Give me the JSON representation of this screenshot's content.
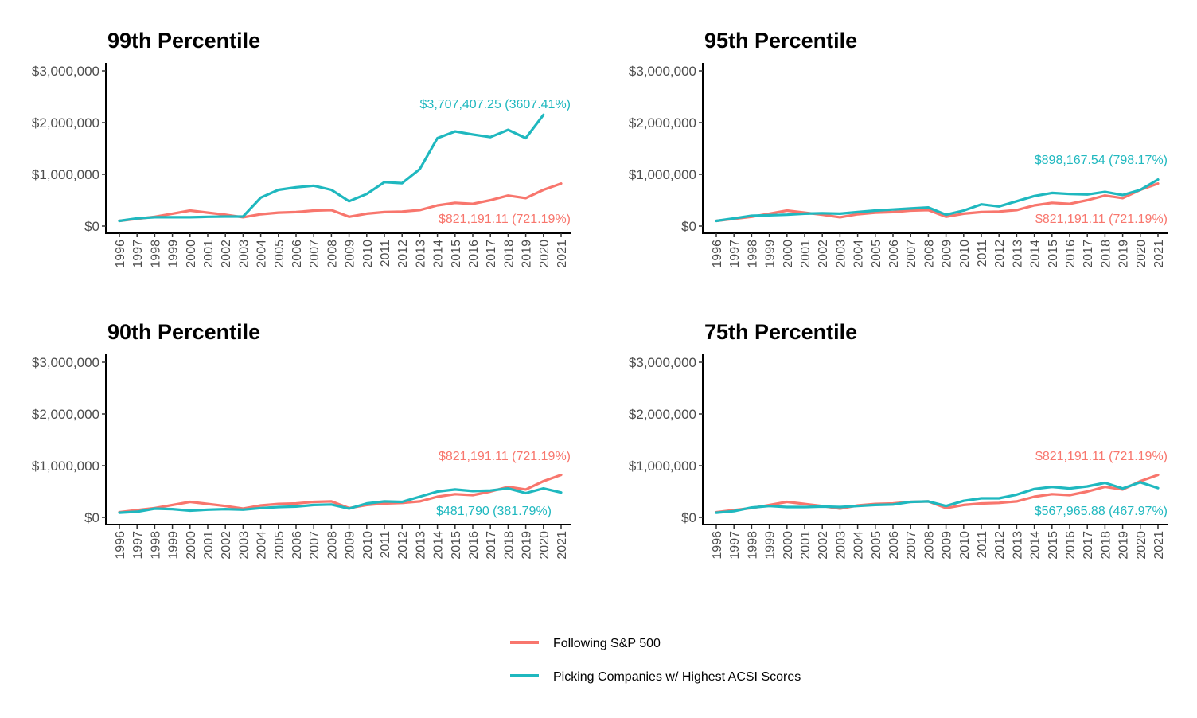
{
  "colors": {
    "sp500": "#F8766D",
    "acsi": "#1FB8BF"
  },
  "legend": {
    "sp500_label": "Following S&P 500",
    "acsi_label": "Picking Companies w/ Highest ACSI Scores"
  },
  "chart_data": [
    {
      "type": "line",
      "title": "99th Percentile",
      "x": [
        1996,
        1997,
        1998,
        1999,
        2000,
        2001,
        2002,
        2003,
        2004,
        2005,
        2006,
        2007,
        2008,
        2009,
        2010,
        2011,
        2012,
        2013,
        2014,
        2015,
        2016,
        2017,
        2018,
        2019,
        2020,
        2021
      ],
      "ylim": [
        0,
        3000000
      ],
      "yticks": [
        "$0",
        "$1,000,000",
        "$2,000,000",
        "$3,000,000"
      ],
      "series": [
        {
          "key": "sp500",
          "values": [
            100000,
            140000,
            180000,
            240000,
            300000,
            260000,
            220000,
            170000,
            230000,
            260000,
            270000,
            300000,
            310000,
            180000,
            240000,
            270000,
            280000,
            310000,
            400000,
            450000,
            430000,
            500000,
            590000,
            540000,
            700000,
            821191
          ]
        },
        {
          "key": "acsi",
          "values": [
            100000,
            150000,
            170000,
            170000,
            170000,
            180000,
            185000,
            185000,
            550000,
            700000,
            750000,
            780000,
            700000,
            480000,
            620000,
            850000,
            830000,
            1100000,
            1700000,
            1830000,
            1770000,
            1720000,
            1860000,
            1700000,
            2150000,
            null
          ]
        }
      ],
      "annotations": [
        {
          "series": "acsi",
          "text": "$3,707,407.25 (3607.41%)"
        },
        {
          "series": "sp500",
          "text": "$821,191.11 (721.19%)"
        }
      ]
    },
    {
      "type": "line",
      "title": "95th Percentile",
      "x": [
        1996,
        1997,
        1998,
        1999,
        2000,
        2001,
        2002,
        2003,
        2004,
        2005,
        2006,
        2007,
        2008,
        2009,
        2010,
        2011,
        2012,
        2013,
        2014,
        2015,
        2016,
        2017,
        2018,
        2019,
        2020,
        2021
      ],
      "ylim": [
        0,
        3000000
      ],
      "yticks": [
        "$0",
        "$1,000,000",
        "$2,000,000",
        "$3,000,000"
      ],
      "series": [
        {
          "key": "sp500",
          "values": [
            100000,
            140000,
            180000,
            240000,
            300000,
            260000,
            220000,
            170000,
            230000,
            260000,
            270000,
            300000,
            310000,
            180000,
            240000,
            270000,
            280000,
            310000,
            400000,
            450000,
            430000,
            500000,
            590000,
            540000,
            700000,
            821191
          ]
        },
        {
          "key": "acsi",
          "values": [
            100000,
            150000,
            200000,
            210000,
            220000,
            240000,
            250000,
            240000,
            270000,
            300000,
            320000,
            340000,
            360000,
            220000,
            300000,
            420000,
            380000,
            480000,
            580000,
            640000,
            620000,
            610000,
            660000,
            600000,
            700000,
            898168
          ]
        }
      ],
      "annotations": [
        {
          "series": "acsi",
          "text": "$898,167.54 (798.17%)"
        },
        {
          "series": "sp500",
          "text": "$821,191.11 (721.19%)"
        }
      ]
    },
    {
      "type": "line",
      "title": "90th Percentile",
      "x": [
        1996,
        1997,
        1998,
        1999,
        2000,
        2001,
        2002,
        2003,
        2004,
        2005,
        2006,
        2007,
        2008,
        2009,
        2010,
        2011,
        2012,
        2013,
        2014,
        2015,
        2016,
        2017,
        2018,
        2019,
        2020,
        2021
      ],
      "ylim": [
        0,
        3000000
      ],
      "yticks": [
        "$0",
        "$1,000,000",
        "$2,000,000",
        "$3,000,000"
      ],
      "series": [
        {
          "key": "sp500",
          "values": [
            100000,
            140000,
            180000,
            240000,
            300000,
            260000,
            220000,
            170000,
            230000,
            260000,
            270000,
            300000,
            310000,
            180000,
            240000,
            270000,
            280000,
            310000,
            400000,
            450000,
            430000,
            500000,
            590000,
            540000,
            700000,
            821191
          ]
        },
        {
          "key": "acsi",
          "values": [
            90000,
            110000,
            170000,
            160000,
            130000,
            150000,
            160000,
            150000,
            180000,
            200000,
            210000,
            240000,
            250000,
            170000,
            270000,
            310000,
            300000,
            400000,
            500000,
            540000,
            510000,
            520000,
            560000,
            470000,
            560000,
            481790
          ]
        }
      ],
      "annotations": [
        {
          "series": "sp500",
          "text": "$821,191.11 (721.19%)"
        },
        {
          "series": "acsi",
          "text": "$481,790 (381.79%)"
        }
      ]
    },
    {
      "type": "line",
      "title": "75th Percentile",
      "x": [
        1996,
        1997,
        1998,
        1999,
        2000,
        2001,
        2002,
        2003,
        2004,
        2005,
        2006,
        2007,
        2008,
        2009,
        2010,
        2011,
        2012,
        2013,
        2014,
        2015,
        2016,
        2017,
        2018,
        2019,
        2020,
        2021
      ],
      "ylim": [
        0,
        3000000
      ],
      "yticks": [
        "$0",
        "$1,000,000",
        "$2,000,000",
        "$3,000,000"
      ],
      "series": [
        {
          "key": "sp500",
          "values": [
            100000,
            140000,
            180000,
            240000,
            300000,
            260000,
            220000,
            170000,
            230000,
            260000,
            270000,
            300000,
            310000,
            180000,
            240000,
            270000,
            280000,
            310000,
            400000,
            450000,
            430000,
            500000,
            590000,
            540000,
            700000,
            821191
          ]
        },
        {
          "key": "acsi",
          "values": [
            90000,
            120000,
            190000,
            220000,
            200000,
            200000,
            210000,
            200000,
            220000,
            240000,
            250000,
            300000,
            310000,
            220000,
            320000,
            370000,
            370000,
            440000,
            550000,
            590000,
            560000,
            600000,
            670000,
            560000,
            680000,
            567966
          ]
        }
      ],
      "annotations": [
        {
          "series": "sp500",
          "text": "$821,191.11 (721.19%)"
        },
        {
          "series": "acsi",
          "text": "$567,965.88 (467.97%)"
        }
      ]
    }
  ]
}
